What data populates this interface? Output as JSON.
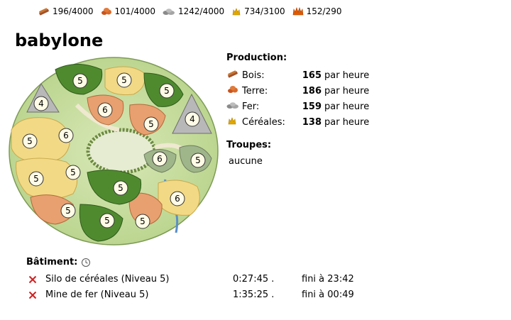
{
  "resources": [
    {
      "name": "Bois",
      "icon": "wood-icon",
      "amount": "196/4000"
    },
    {
      "name": "Terre",
      "icon": "clay-icon",
      "amount": "101/4000"
    },
    {
      "name": "Fer",
      "icon": "iron-icon",
      "amount": "1242/4000"
    },
    {
      "name": "Céréales",
      "icon": "crop-icon",
      "amount": "734/3100"
    },
    {
      "name": "Consommation",
      "icon": "crop-consumption-icon",
      "amount": "152/290"
    }
  ],
  "village": {
    "name": "babylone"
  },
  "map": {
    "fields": [
      {
        "type": "wood",
        "level": "5"
      },
      {
        "type": "wood",
        "level": "5"
      },
      {
        "type": "wood",
        "level": "5"
      },
      {
        "type": "wood",
        "level": "5"
      },
      {
        "type": "clay",
        "level": "6"
      },
      {
        "type": "clay",
        "level": "5"
      },
      {
        "type": "clay",
        "level": "5"
      },
      {
        "type": "clay",
        "level": "5"
      },
      {
        "type": "iron",
        "level": "4"
      },
      {
        "type": "iron",
        "level": "4"
      },
      {
        "type": "iron",
        "level": "6"
      },
      {
        "type": "iron",
        "level": "5"
      },
      {
        "type": "crop",
        "level": "6"
      },
      {
        "type": "crop",
        "level": "5"
      },
      {
        "type": "crop",
        "level": "5"
      },
      {
        "type": "crop",
        "level": "5"
      },
      {
        "type": "crop",
        "level": "5"
      },
      {
        "type": "crop",
        "level": "6"
      }
    ]
  },
  "production": {
    "title": "Production:",
    "unit": "par heure",
    "rows": [
      {
        "label": "Bois:",
        "value": "165",
        "icon": "wood-icon"
      },
      {
        "label": "Terre:",
        "value": "186",
        "icon": "clay-icon"
      },
      {
        "label": "Fer:",
        "value": "159",
        "icon": "iron-icon"
      },
      {
        "label": "Céréales:",
        "value": "138",
        "icon": "crop-icon"
      }
    ]
  },
  "troops": {
    "title": "Troupes:",
    "value": "aucune"
  },
  "building": {
    "title": "Bâtiment:",
    "items": [
      {
        "name": "Silo de céréales (Niveau 5)",
        "duration": "0:27:45 .",
        "finish": "fini à 23:42"
      },
      {
        "name": "Mine de fer (Niveau 5)",
        "duration": "1:35:25 .",
        "finish": "fini à 00:49"
      }
    ]
  }
}
